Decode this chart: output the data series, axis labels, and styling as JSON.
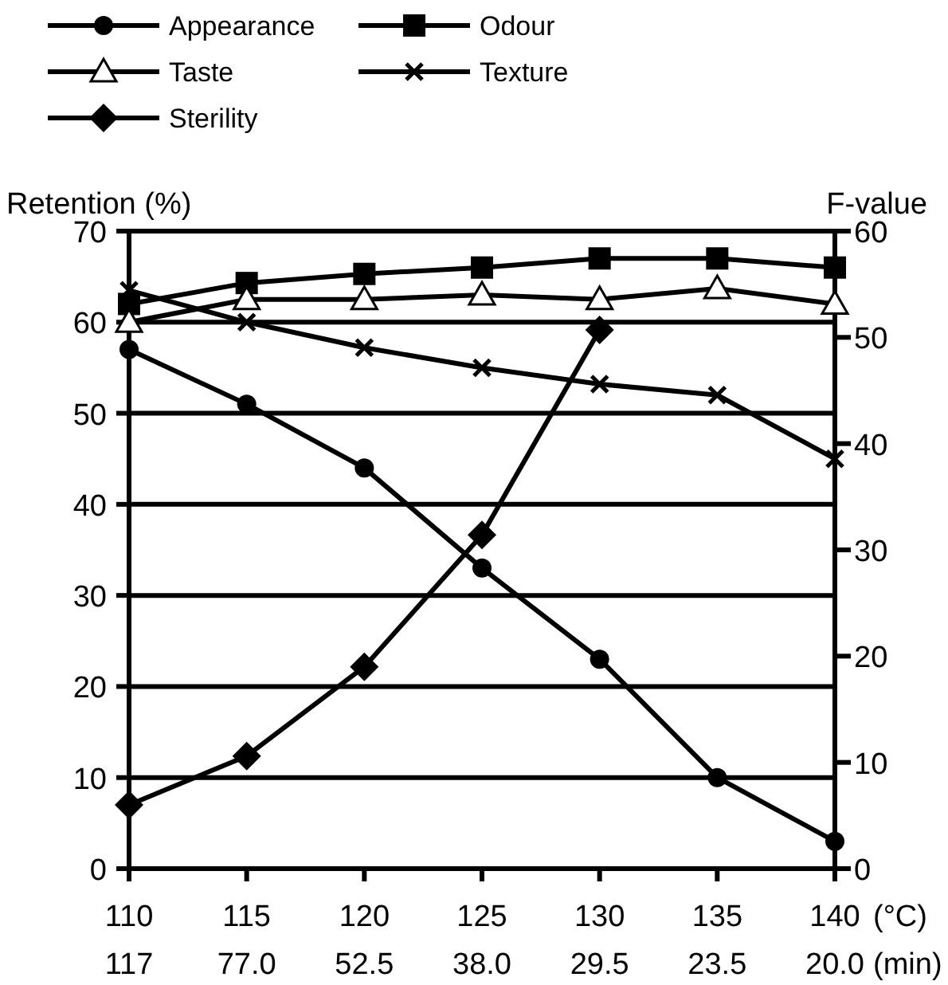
{
  "chart_data": {
    "type": "line",
    "ylabel": "Retention (%)",
    "y2label": "F-value",
    "xlabel": "(°C)",
    "x": [
      110,
      115,
      120,
      125,
      130,
      135,
      140
    ],
    "xlim": [
      110,
      140
    ],
    "xticks": [
      110,
      115,
      120,
      125,
      130,
      135,
      140
    ],
    "annotations": [
      "117",
      "77.0",
      "52.5",
      "38.0",
      "29.5",
      "23.5",
      "20.0",
      "(min)"
    ],
    "ylim": [
      0,
      70
    ],
    "yticks": [
      0,
      10,
      20,
      30,
      40,
      50,
      60,
      70
    ],
    "y2lim": [
      0,
      60
    ],
    "y2ticks": [
      0,
      10,
      20,
      30,
      40,
      50,
      60
    ],
    "grid": "y",
    "legend": "top",
    "line_style": "solid",
    "series": [
      {
        "name": "Appearance",
        "color": "#000000",
        "marker": "circle",
        "values": [
          57,
          51,
          44,
          33,
          23,
          10,
          3
        ]
      },
      {
        "name": "Odour",
        "color": "#000000",
        "marker": "square",
        "values": [
          62,
          64.3,
          65.3,
          66,
          67,
          67,
          66
        ]
      },
      {
        "name": "Taste",
        "color": "#000000",
        "marker": "triangle",
        "values": [
          60,
          62.5,
          62.5,
          63,
          62.5,
          63.7,
          62
        ]
      },
      {
        "name": "Texture",
        "color": "#000000",
        "marker": "cross",
        "values": [
          63.5,
          60,
          57.2,
          55,
          53.2,
          52,
          45
        ]
      },
      {
        "name": "Sterility",
        "color": "#000000",
        "marker": "diamond",
        "axis": "y2",
        "values": [
          6,
          10.6,
          19,
          31.4,
          50.7,
          null,
          null
        ]
      }
    ]
  }
}
